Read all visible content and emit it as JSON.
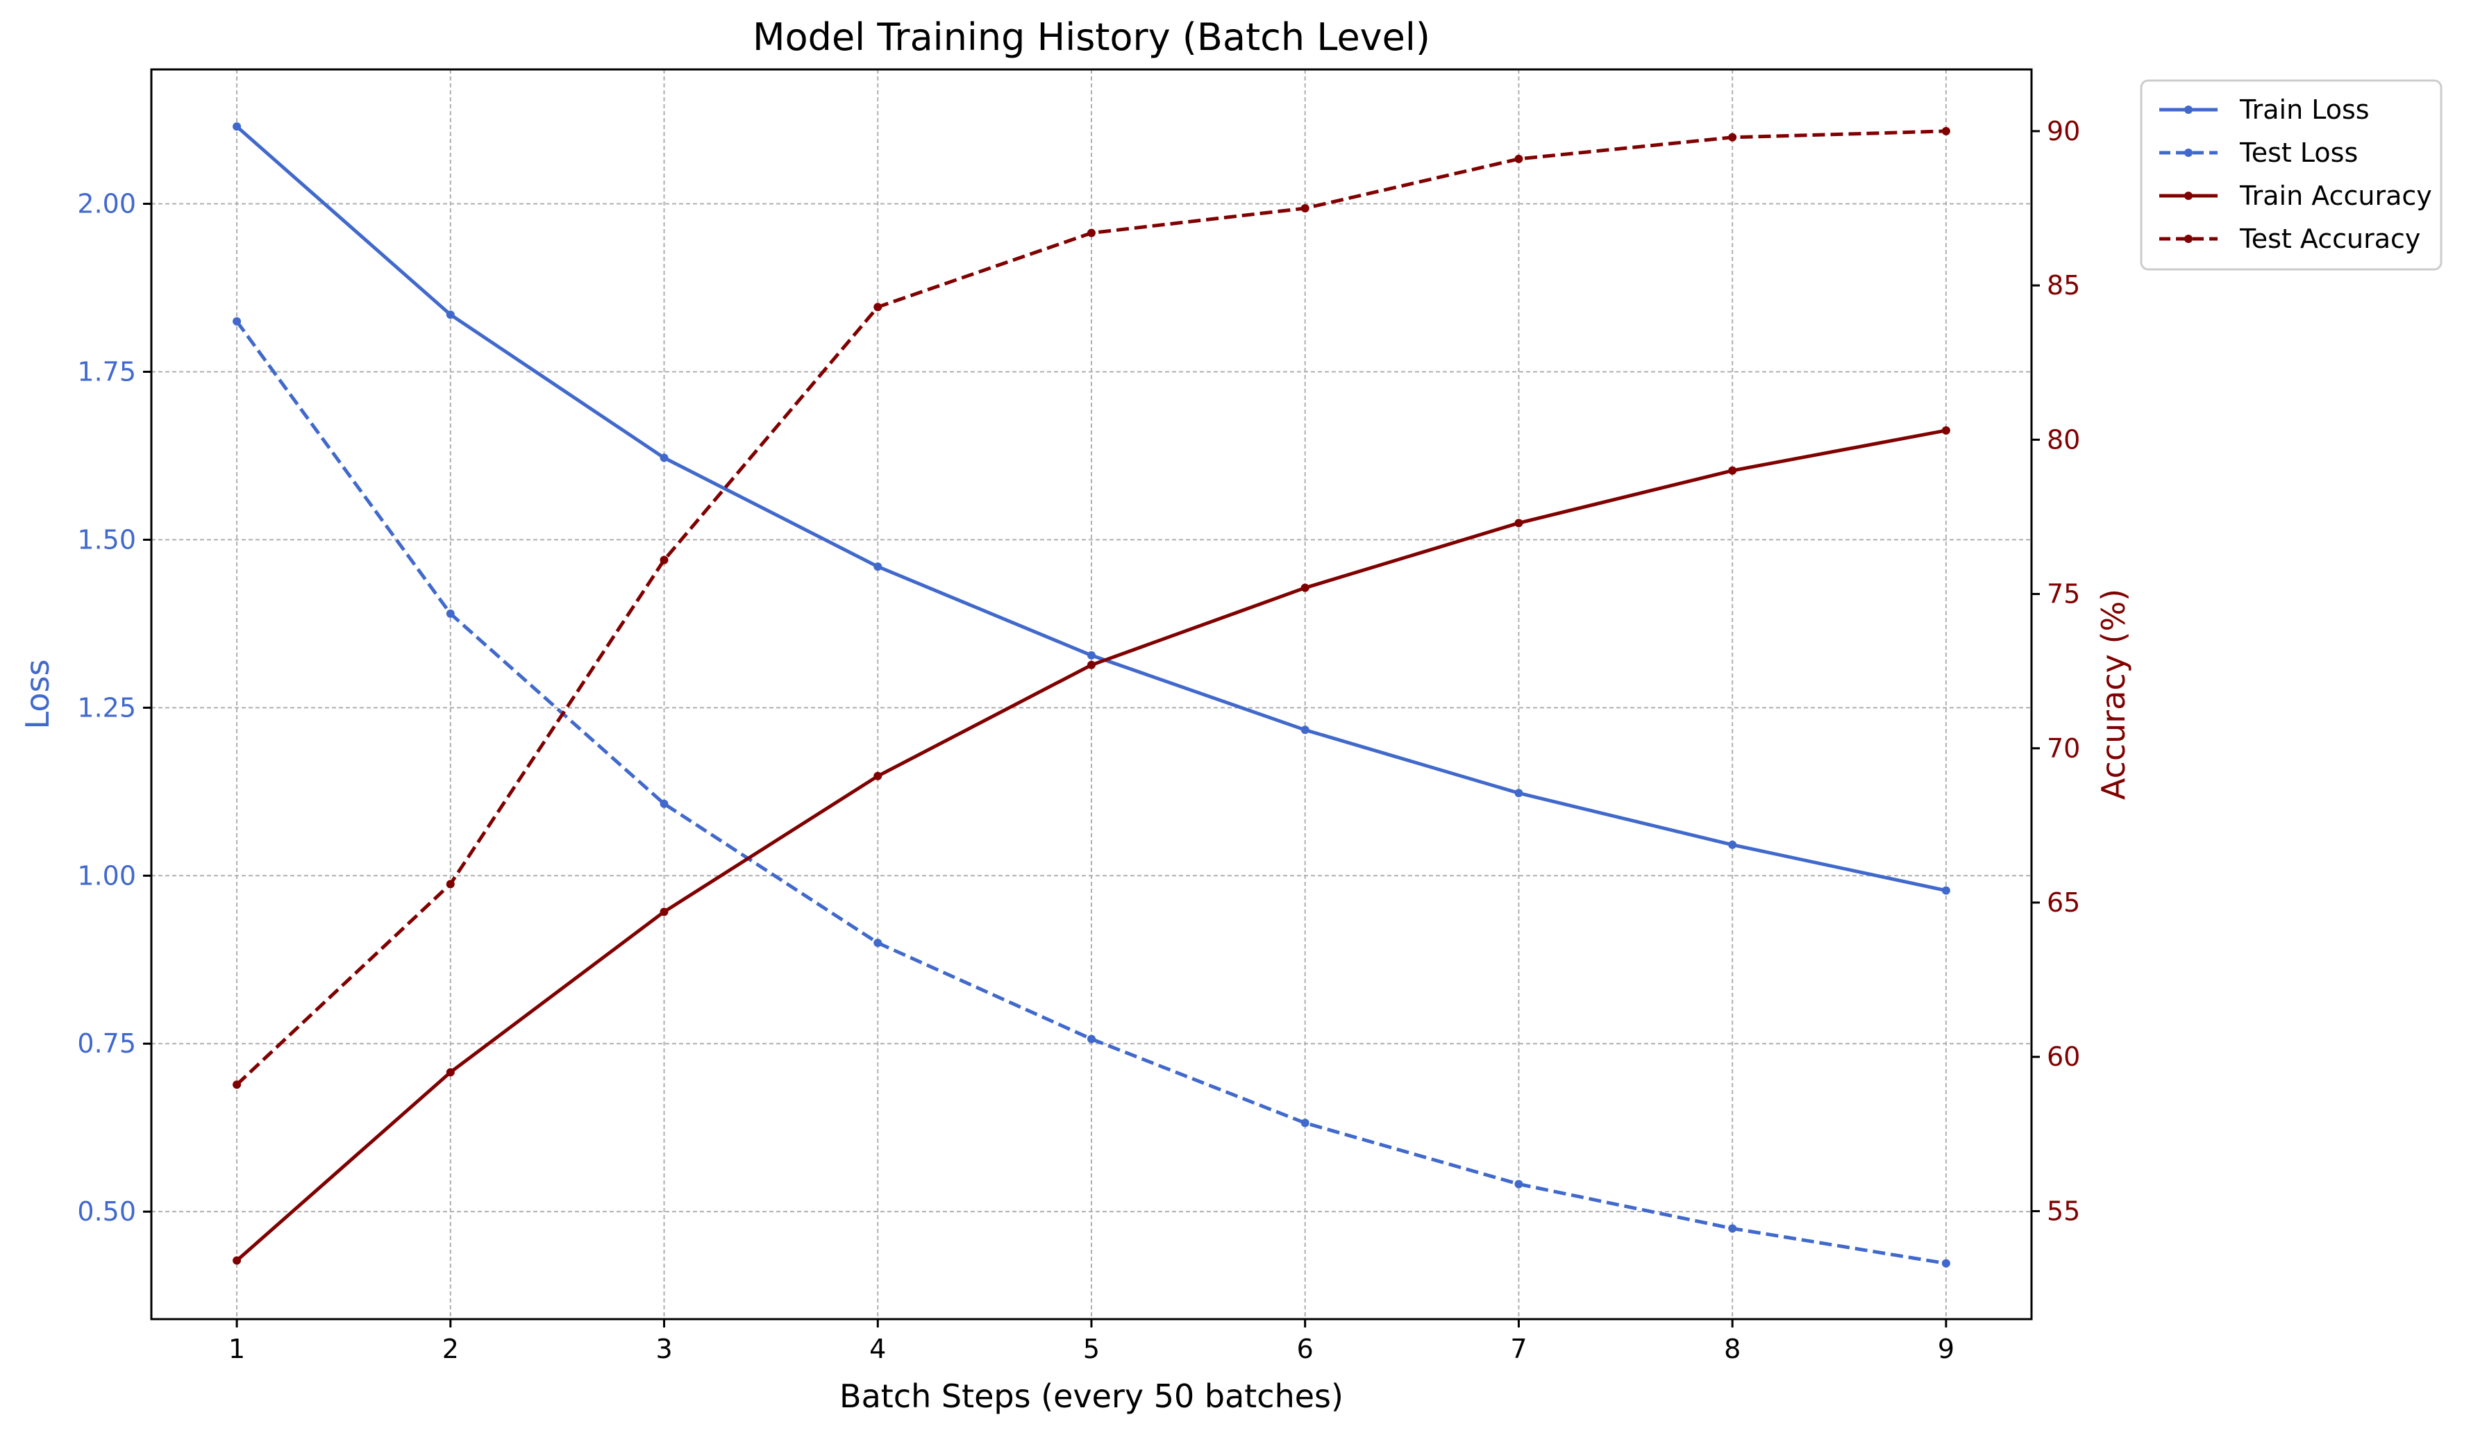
{
  "chart_data": {
    "type": "line",
    "title": "Model Training History (Batch Level)",
    "xlabel": "Batch Steps (every 50 batches)",
    "ylabel_left": "Loss",
    "ylabel_right": "Accuracy (%)",
    "x": [
      1,
      2,
      3,
      4,
      5,
      6,
      7,
      8,
      9
    ],
    "xlim": [
      0.6,
      9.4
    ],
    "ylim_left": [
      0.34,
      2.2
    ],
    "ylim_right": [
      51.5,
      92.0
    ],
    "yticks_left": [
      "0.50",
      "0.75",
      "1.00",
      "1.25",
      "1.50",
      "1.75",
      "2.00"
    ],
    "yticks_right": [
      "55",
      "60",
      "65",
      "70",
      "75",
      "80",
      "85",
      "90"
    ],
    "grid": true,
    "legend_position": "outside-top-right",
    "colors": {
      "loss": "#4169cc",
      "accuracy": "#800000"
    },
    "series": [
      {
        "name": "Train Loss",
        "axis": "left",
        "style": "solid",
        "color": "#4169cc",
        "values": [
          2.115,
          1.835,
          1.622,
          1.46,
          1.328,
          1.217,
          1.123,
          1.046,
          0.978
        ]
      },
      {
        "name": "Test Loss",
        "axis": "left",
        "style": "dashed",
        "color": "#4169cc",
        "values": [
          1.825,
          1.39,
          1.107,
          0.9,
          0.757,
          0.632,
          0.541,
          0.475,
          0.423
        ]
      },
      {
        "name": "Train Accuracy",
        "axis": "right",
        "style": "solid",
        "color": "#800000",
        "values": [
          53.4,
          59.5,
          64.7,
          69.1,
          72.7,
          75.2,
          77.3,
          79.0,
          80.3
        ]
      },
      {
        "name": "Test Accuracy",
        "axis": "right",
        "style": "dashed",
        "color": "#800000",
        "values": [
          59.1,
          65.6,
          76.1,
          84.3,
          86.7,
          87.5,
          89.1,
          89.8,
          90.0
        ]
      }
    ]
  }
}
